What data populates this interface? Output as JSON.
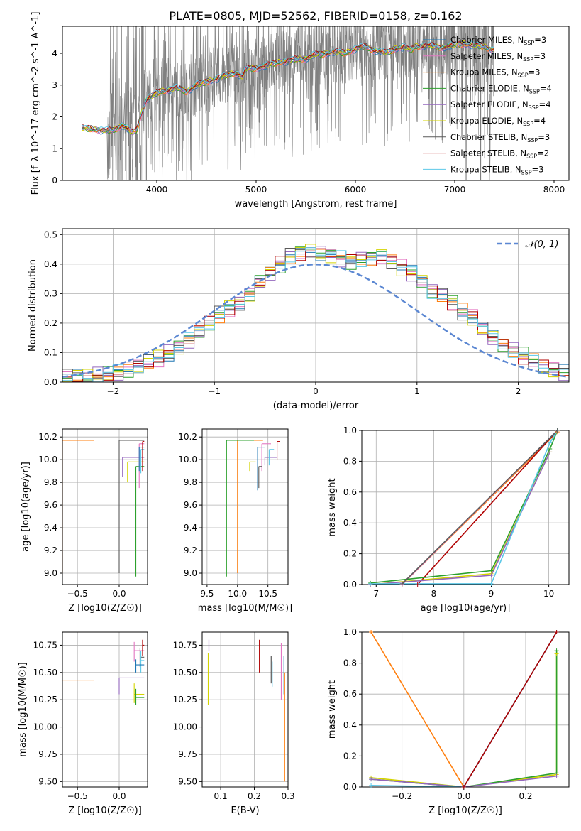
{
  "figure": {
    "title": "PLATE=0805, MJD=52562, FIBERID=0158, z=0.162"
  },
  "colors": {
    "spectrum": "#808080",
    "gaussian": "#5b87d2",
    "grid": "#b0b0b0",
    "series": [
      "#1f77b4",
      "#e377c2",
      "#ff7f0e",
      "#2ca02c",
      "#9467bd",
      "#d4d400",
      "#5a5a5a",
      "#b00000",
      "#5bc8e8"
    ]
  },
  "legend_labels": [
    "Chabrier MILES, N_SSP=3",
    "Salpeter MILES, N_SSP=3",
    "Kroupa MILES, N_SSP=3",
    "Chabrier ELODIE, N_SSP=4",
    "Salpeter ELODIE, N_SSP=4",
    "Kroupa ELODIE, N_SSP=4",
    "Chabrier STELIB, N_SSP=3",
    "Salpeter STELIB, N_SSP=2",
    "Kroupa STELIB, N_SSP=3"
  ],
  "chart_data": [
    {
      "id": "spectrum",
      "type": "line",
      "xlabel": "wavelength [Angstrom, rest frame]",
      "ylabel": "Flux [f_λ 10^-17 erg cm^-2 s^-1 A^-1]",
      "xlim": [
        3050,
        8150
      ],
      "ylim": [
        0,
        4.85
      ],
      "xticks": [
        4000,
        5000,
        6000,
        7000,
        8000
      ],
      "yticks": [
        0,
        1,
        2,
        3,
        4
      ],
      "legend": "top-right",
      "continuum_x": [
        3250,
        3400,
        3550,
        3650,
        3750,
        3800,
        3850,
        3900,
        4000,
        4100,
        4200,
        4300,
        4400,
        4500,
        4600,
        4700,
        4800,
        4862,
        4900,
        5000,
        5100,
        5200,
        5300,
        5400,
        5500,
        5600,
        5700,
        5800,
        5900,
        6000,
        6100,
        6200,
        6300,
        6400,
        6500,
        6563,
        6600,
        6700,
        6800,
        6900,
        7000,
        7100,
        7200,
        7300,
        7400
      ],
      "continuum_y": [
        1.65,
        1.6,
        1.55,
        1.75,
        1.5,
        1.6,
        2.15,
        2.55,
        2.75,
        2.85,
        2.9,
        2.8,
        3.0,
        3.1,
        3.2,
        3.3,
        3.4,
        3.25,
        3.5,
        3.55,
        3.6,
        3.7,
        3.75,
        3.8,
        3.85,
        3.95,
        4.0,
        4.05,
        4.0,
        4.15,
        4.2,
        4.1,
        4.0,
        4.15,
        4.2,
        4.1,
        4.2,
        4.25,
        4.2,
        4.2,
        4.25,
        4.3,
        4.25,
        4.2,
        4.1
      ],
      "noisy_range": [
        3500,
        7400
      ]
    },
    {
      "id": "residuals",
      "type": "histogram",
      "xlabel": "(data-model)/error",
      "ylabel": "Normed distribution",
      "xlim": [
        -2.5,
        2.5
      ],
      "ylim": [
        0,
        0.52
      ],
      "xticks": [
        -2,
        -1,
        0,
        1,
        2
      ],
      "yticks": [
        0.0,
        0.1,
        0.2,
        0.3,
        0.4,
        0.5
      ],
      "bin_width": 0.1,
      "bin_edges_from": -2.5,
      "base_values": [
        0.015,
        0.018,
        0.02,
        0.022,
        0.025,
        0.03,
        0.04,
        0.05,
        0.07,
        0.08,
        0.1,
        0.12,
        0.14,
        0.17,
        0.2,
        0.23,
        0.25,
        0.27,
        0.3,
        0.34,
        0.37,
        0.4,
        0.43,
        0.44,
        0.45,
        0.44,
        0.43,
        0.42,
        0.41,
        0.42,
        0.42,
        0.43,
        0.41,
        0.39,
        0.37,
        0.34,
        0.31,
        0.3,
        0.27,
        0.24,
        0.22,
        0.18,
        0.15,
        0.13,
        0.11,
        0.09,
        0.07,
        0.05,
        0.04,
        0.03
      ],
      "gaussian_label": "𝒩(0, 1)",
      "legend": "top-right"
    },
    {
      "id": "z-age",
      "type": "scatter-errorbar",
      "xlabel": "Z [log10(Z/Z☉)]",
      "ylabel": "age  [log10(age/yr)]",
      "xlim": [
        -0.68,
        0.34
      ],
      "ylim": [
        8.9,
        10.27
      ],
      "xticks": [
        -0.5,
        0.0
      ],
      "xticklabels": [
        "−0.5",
        "0.0"
      ],
      "yticks": [
        9.0,
        9.2,
        9.4,
        9.6,
        9.8,
        10.0,
        10.2
      ],
      "points": [
        {
          "x": -0.3,
          "y": 10.17,
          "xerr": 0.38,
          "ylo": 9.0,
          "c": 2
        },
        {
          "x": 0.3,
          "y": 10.17,
          "xerr": 0.3,
          "ylo": 9.0,
          "c": 6
        },
        {
          "x": 0.3,
          "y": 10.02,
          "xerr": 0.26,
          "ylo": 9.85,
          "c": 4
        },
        {
          "x": 0.3,
          "y": 9.98,
          "xerr": 0.2,
          "ylo": 9.8,
          "c": 5
        },
        {
          "x": 0.3,
          "y": 9.94,
          "xerr": 0.1,
          "ylo": 8.97,
          "c": 3
        },
        {
          "x": 0.3,
          "y": 10.14,
          "xerr": 0.06,
          "ylo": 9.75,
          "c": 1
        },
        {
          "x": 0.3,
          "y": 10.11,
          "xerr": 0.06,
          "ylo": 9.9,
          "c": 0
        },
        {
          "x": 0.3,
          "y": 10.09,
          "xerr": 0.04,
          "ylo": 9.88,
          "c": 8
        },
        {
          "x": 0.3,
          "y": 10.16,
          "xerr": 0.02,
          "ylo": 9.9,
          "c": 7
        }
      ]
    },
    {
      "id": "mass-age",
      "type": "scatter-errorbar",
      "xlabel": "mass [log10(M/M☉)]",
      "ylabel": "",
      "xlim": [
        9.42,
        10.83
      ],
      "ylim": [
        8.9,
        10.27
      ],
      "xticks": [
        9.5,
        10.0,
        10.5
      ],
      "xticklabels": [
        "9.5",
        "10.0",
        "10.5"
      ],
      "yticks": [
        9.0,
        9.2,
        9.4,
        9.6,
        9.8,
        10.0,
        10.2
      ],
      "points": [
        {
          "x": 10.42,
          "y": 10.17,
          "xerr": 0.42,
          "ylo": 9.0,
          "c": 2
        },
        {
          "x": 10.27,
          "y": 10.17,
          "xerr": 0.45,
          "ylo": 8.97,
          "c": 3
        },
        {
          "x": 10.65,
          "y": 10.02,
          "xerr": 0.2,
          "ylo": 9.95,
          "c": 4
        },
        {
          "x": 10.45,
          "y": 10.11,
          "xerr": 0.12,
          "ylo": 9.73,
          "c": 0
        },
        {
          "x": 10.55,
          "y": 10.14,
          "xerr": 0.15,
          "ylo": 9.9,
          "c": 1
        },
        {
          "x": 10.3,
          "y": 9.98,
          "xerr": 0.1,
          "ylo": 9.9,
          "c": 5
        },
        {
          "x": 10.6,
          "y": 10.09,
          "xerr": 0.08,
          "ylo": 9.95,
          "c": 8
        },
        {
          "x": 10.7,
          "y": 10.16,
          "xerr": 0.05,
          "ylo": 10.0,
          "c": 7
        },
        {
          "x": 10.4,
          "y": 9.94,
          "xerr": 0.05,
          "ylo": 9.75,
          "c": 6
        }
      ]
    },
    {
      "id": "age-weight",
      "type": "line",
      "xlabel": "age  [log10(age/yr)]",
      "ylabel": "mass weight",
      "xlim": [
        6.75,
        10.35
      ],
      "ylim": [
        0,
        1.0
      ],
      "xticks": [
        7,
        8,
        9,
        10
      ],
      "yticks": [
        0.0,
        0.2,
        0.4,
        0.6,
        0.8,
        1.0
      ],
      "series": [
        {
          "c": 0,
          "x": [
            7.45,
            10.15
          ],
          "y": [
            0.0,
            1.0
          ]
        },
        {
          "c": 2,
          "x": [
            7.45,
            10.15
          ],
          "y": [
            0.0,
            0.99
          ]
        },
        {
          "c": 1,
          "x": [
            7.45,
            10.15
          ],
          "y": [
            0.0,
            1.0
          ]
        },
        {
          "c": 7,
          "x": [
            7.72,
            10.15
          ],
          "y": [
            0.0,
            1.0
          ]
        },
        {
          "c": 3,
          "x": [
            6.9,
            9.0,
            10.02,
            10.15
          ],
          "y": [
            0.01,
            0.09,
            0.88,
            1.0
          ]
        },
        {
          "c": 5,
          "x": [
            6.9,
            9.0,
            10.02
          ],
          "y": [
            0.0,
            0.07,
            0.86
          ]
        },
        {
          "c": 4,
          "x": [
            6.9,
            9.0,
            10.02
          ],
          "y": [
            0.0,
            0.06,
            0.86
          ]
        },
        {
          "c": 8,
          "x": [
            6.9,
            9.0,
            10.02,
            10.15
          ],
          "y": [
            0.005,
            0.005,
            0.92,
            1.0
          ]
        },
        {
          "c": 6,
          "x": [
            7.45,
            10.15
          ],
          "y": [
            0.005,
            1.0
          ]
        }
      ]
    },
    {
      "id": "z-mass",
      "type": "scatter-errorbar",
      "xlabel": "Z [log10(Z/Z☉)]",
      "ylabel": "mass [log10(M/M☉)]",
      "xlim": [
        -0.68,
        0.34
      ],
      "ylim": [
        9.45,
        10.87
      ],
      "xticks": [
        -0.5,
        0.0
      ],
      "xticklabels": [
        "−0.5",
        "0.0"
      ],
      "yticks": [
        9.5,
        9.75,
        10.0,
        10.25,
        10.5,
        10.75
      ],
      "yticklabels": [
        "9.50",
        "9.75",
        "10.00",
        "10.25",
        "10.50",
        "10.75"
      ],
      "points": [
        {
          "x": -0.3,
          "y": 10.43,
          "xerr": 0.62,
          "ylo": 9.5,
          "yhi": 10.55,
          "c": 2
        },
        {
          "x": 0.3,
          "y": 10.45,
          "xerr": 0.3,
          "ylo": 10.3,
          "yhi": 10.45,
          "c": 4
        },
        {
          "x": 0.3,
          "y": 10.3,
          "xerr": 0.12,
          "ylo": 10.22,
          "yhi": 10.4,
          "c": 5
        },
        {
          "x": 0.3,
          "y": 10.27,
          "xerr": 0.1,
          "ylo": 10.2,
          "yhi": 10.35,
          "c": 3
        },
        {
          "x": 0.3,
          "y": 10.7,
          "xerr": 0.12,
          "ylo": 10.6,
          "yhi": 10.78,
          "c": 1
        },
        {
          "x": 0.3,
          "y": 10.64,
          "xerr": 0.05,
          "ylo": 10.55,
          "yhi": 10.72,
          "c": 6
        },
        {
          "x": 0.3,
          "y": 10.61,
          "xerr": 0.04,
          "ylo": 10.5,
          "yhi": 10.7,
          "c": 8
        },
        {
          "x": 0.3,
          "y": 10.57,
          "xerr": 0.1,
          "ylo": 10.5,
          "yhi": 10.62,
          "c": 0
        },
        {
          "x": 0.3,
          "y": 10.75,
          "xerr": 0.02,
          "ylo": 10.65,
          "yhi": 10.8,
          "c": 7
        }
      ]
    },
    {
      "id": "ebv-mass",
      "type": "errorbar",
      "xlabel": "E(B-V)",
      "ylabel": "",
      "xlim": [
        0.045,
        0.3
      ],
      "ylim": [
        9.45,
        10.87
      ],
      "xticks": [
        0.1,
        0.2,
        0.3
      ],
      "xticklabels": [
        "0.1",
        "0.2",
        "0.3"
      ],
      "yticks": [
        9.5,
        9.75,
        10.0,
        10.25,
        10.5,
        10.75
      ],
      "yticklabels": [
        "9.50",
        "9.75",
        "10.00",
        "10.25",
        "10.50",
        "10.75"
      ],
      "bars": [
        {
          "x": 0.065,
          "ylo": 10.7,
          "yhi": 10.8,
          "c": 4
        },
        {
          "x": 0.063,
          "ylo": 10.2,
          "yhi": 10.68,
          "c": 5
        },
        {
          "x": 0.215,
          "ylo": 10.5,
          "yhi": 10.8,
          "c": 7
        },
        {
          "x": 0.25,
          "ylo": 10.4,
          "yhi": 10.65,
          "c": 6
        },
        {
          "x": 0.253,
          "ylo": 10.37,
          "yhi": 10.6,
          "c": 8
        },
        {
          "x": 0.28,
          "ylo": 10.25,
          "yhi": 10.77,
          "c": 1
        },
        {
          "x": 0.288,
          "ylo": 10.3,
          "yhi": 10.65,
          "c": 0
        },
        {
          "x": 0.29,
          "ylo": 9.5,
          "yhi": 10.5,
          "c": 2
        }
      ]
    },
    {
      "id": "z-weight",
      "type": "line",
      "xlabel": "Z [log10(Z/Z☉)]",
      "ylabel": "mass weight",
      "xlim": [
        -0.33,
        0.34
      ],
      "ylim": [
        0,
        1.0
      ],
      "xticks": [
        -0.2,
        0.0,
        0.2
      ],
      "xticklabels": [
        "−0.2",
        "0.0",
        "0.2"
      ],
      "yticks": [
        0.0,
        0.2,
        0.4,
        0.6,
        0.8,
        1.0
      ],
      "series": [
        {
          "c": 2,
          "x": [
            -0.3,
            0.0
          ],
          "y": [
            1.0,
            0.0
          ]
        },
        {
          "c": 5,
          "x": [
            -0.3,
            0.0,
            0.3,
            0.3
          ],
          "y": [
            0.06,
            0.0,
            0.08,
            0.86
          ]
        },
        {
          "c": 3,
          "x": [
            -0.3,
            0.0,
            0.3,
            0.3
          ],
          "y": [
            0.05,
            0.0,
            0.09,
            0.88
          ]
        },
        {
          "c": 4,
          "x": [
            -0.3,
            0.0,
            0.3
          ],
          "y": [
            0.05,
            0.0,
            0.07
          ]
        },
        {
          "c": 8,
          "x": [
            -0.3,
            0.0,
            0.3
          ],
          "y": [
            0.01,
            0.0,
            1.0
          ]
        },
        {
          "c": 0,
          "x": [
            0.0,
            0.3
          ],
          "y": [
            0.0,
            1.0
          ]
        },
        {
          "c": 7,
          "x": [
            0.0,
            0.3
          ],
          "y": [
            0.0,
            1.0
          ]
        }
      ]
    }
  ]
}
